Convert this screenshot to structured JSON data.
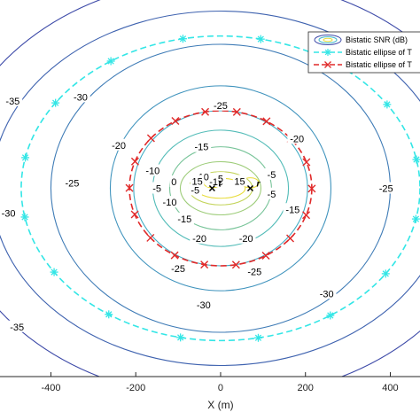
{
  "chart_data": {
    "type": "contour",
    "xlabel": "X (m)",
    "ylabel": "",
    "xlim": [
      -520,
      470
    ],
    "ylim": [
      -340,
      340
    ],
    "x_ticks": [
      -400,
      -200,
      0,
      200,
      400
    ],
    "x_tick_labels": [
      "-400",
      "-200",
      "0",
      "200",
      "400"
    ],
    "transmitter": {
      "name": "t",
      "x": -20,
      "y": 0
    },
    "receiver": {
      "name": "r",
      "x": 70,
      "y": 0
    },
    "contours": [
      {
        "level": -35,
        "rx": 640,
        "ry": 380
      },
      {
        "level": -30,
        "rx": 540,
        "ry": 320
      },
      {
        "level": -25,
        "rx": 400,
        "ry": 260
      },
      {
        "level": -20,
        "rx": 260,
        "ry": 185
      },
      {
        "level": -15,
        "rx": 205,
        "ry": 140
      },
      {
        "level": -10,
        "rx": 160,
        "ry": 105
      },
      {
        "level": -5,
        "rx": 120,
        "ry": 75
      },
      {
        "level": 0,
        "rx": 95,
        "ry": 48
      },
      {
        "level": 5,
        "rx": 75,
        "ry": 30
      },
      {
        "level": 10,
        "rx": 58,
        "ry": 18
      }
    ],
    "contour_labels": [
      {
        "text": "-35",
        "x": -490,
        "y": 158
      },
      {
        "text": "-35",
        "x": -480,
        "y": -250
      },
      {
        "text": "-35",
        "x": 385,
        "y": 225
      },
      {
        "text": "-30",
        "x": -330,
        "y": 165
      },
      {
        "text": "-30",
        "x": -500,
        "y": -45
      },
      {
        "text": "-30",
        "x": -40,
        "y": -210
      },
      {
        "text": "-30",
        "x": 250,
        "y": -190
      },
      {
        "text": "-25",
        "x": 0,
        "y": 150
      },
      {
        "text": "-25",
        "x": -350,
        "y": 10
      },
      {
        "text": "-25",
        "x": 390,
        "y": 0
      },
      {
        "text": "-25",
        "x": -100,
        "y": -145
      },
      {
        "text": "-25",
        "x": 80,
        "y": -150
      },
      {
        "text": "-20",
        "x": -240,
        "y": 78
      },
      {
        "text": "-20",
        "x": 180,
        "y": 90
      },
      {
        "text": "-20",
        "x": -50,
        "y": -90
      },
      {
        "text": "-20",
        "x": 60,
        "y": -90
      },
      {
        "text": "-15",
        "x": -45,
        "y": 75
      },
      {
        "text": "-15",
        "x": 170,
        "y": -38
      },
      {
        "text": "-15",
        "x": -85,
        "y": -55
      },
      {
        "text": "-10",
        "x": -160,
        "y": 32
      },
      {
        "text": "-10",
        "x": -10,
        "y": 12
      },
      {
        "text": "-10",
        "x": -120,
        "y": -25
      },
      {
        "text": "-5",
        "x": -150,
        "y": 0
      },
      {
        "text": "-5",
        "x": 120,
        "y": 25
      },
      {
        "text": "-5",
        "x": -60,
        "y": -3
      },
      {
        "text": "-5",
        "x": 120,
        "y": -10
      },
      {
        "text": "0",
        "x": -110,
        "y": 12
      },
      {
        "text": "5",
        "x": 0,
        "y": 18
      },
      {
        "text": "10",
        "x": -40,
        "y": 21
      },
      {
        "text": "15",
        "x": -55,
        "y": 13
      },
      {
        "text": "15",
        "x": 45,
        "y": 13
      }
    ],
    "series": [
      {
        "name": "Bistatic SNR (dB)",
        "style": "contour",
        "color": "#4b72b5",
        "gradient": [
          "#3d4aa8",
          "#40b8c8",
          "#e8dc3a"
        ]
      },
      {
        "name": "Bistatic ellipse of T",
        "style": "dashed",
        "marker": "asterisk",
        "color": "#33e6e6",
        "center": [
          0,
          0
        ],
        "rx": 470,
        "ry": 275
      },
      {
        "name": "Bistatic ellipse of T",
        "style": "dashed",
        "marker": "cross",
        "color": "#e02a2a",
        "center": [
          0,
          0
        ],
        "rx": 215,
        "ry": 140
      }
    ],
    "legend_position": "top-right"
  }
}
